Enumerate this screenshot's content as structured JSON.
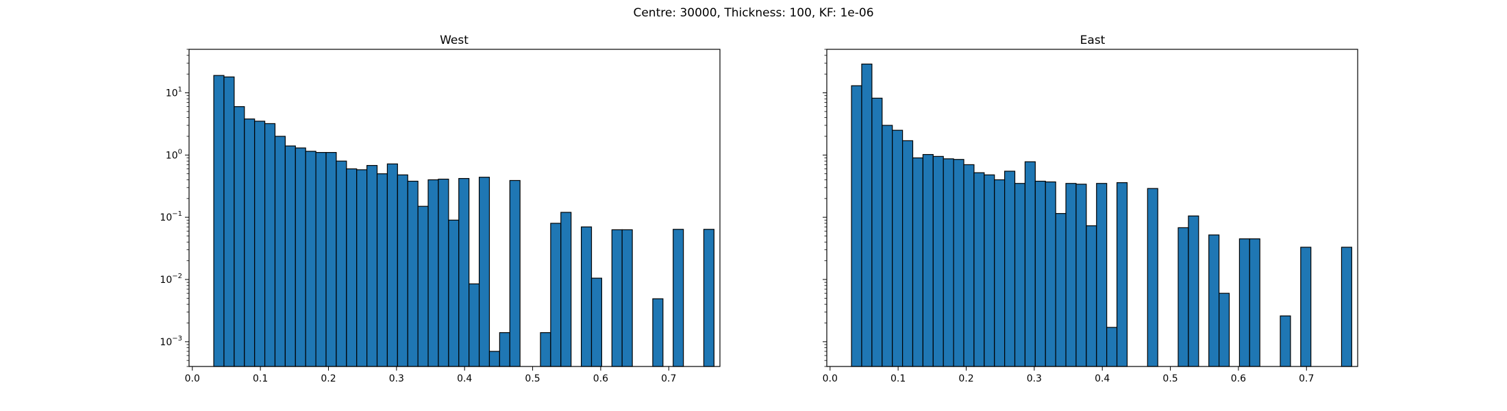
{
  "figure": {
    "suptitle": "Centre: 30000, Thickness: 100, KF: 1e-06"
  },
  "chart_data": [
    {
      "type": "bar",
      "title": "West",
      "xlabel": "",
      "ylabel": "",
      "yscale": "log",
      "grid": false,
      "xlim": [
        -0.0048,
        0.7752
      ],
      "ylim": [
        0.0004,
        50
      ],
      "bin_width": 0.015,
      "bar_color": "#1f77b4",
      "edge_color": "#000000",
      "x_ticks": [
        {
          "value": 0.0,
          "label": "0.0"
        },
        {
          "value": 0.1,
          "label": "0.1"
        },
        {
          "value": 0.2,
          "label": "0.2"
        },
        {
          "value": 0.3,
          "label": "0.3"
        },
        {
          "value": 0.4,
          "label": "0.4"
        },
        {
          "value": 0.5,
          "label": "0.5"
        },
        {
          "value": 0.6,
          "label": "0.6"
        },
        {
          "value": 0.7,
          "label": "0.7"
        }
      ],
      "y_ticks": [
        {
          "value": 0.001,
          "base": "10",
          "exp": "−3"
        },
        {
          "value": 0.01,
          "base": "10",
          "exp": "−2"
        },
        {
          "value": 0.1,
          "base": "10",
          "exp": "−1"
        },
        {
          "value": 1,
          "base": "10",
          "exp": "0"
        },
        {
          "value": 10,
          "base": "10",
          "exp": "1"
        }
      ],
      "bins": [
        {
          "x0": 0.0315,
          "x1": 0.0465,
          "value": 19.0
        },
        {
          "x0": 0.0465,
          "x1": 0.0615,
          "value": 18.0
        },
        {
          "x0": 0.0615,
          "x1": 0.0765,
          "value": 6.0
        },
        {
          "x0": 0.0765,
          "x1": 0.0915,
          "value": 3.8
        },
        {
          "x0": 0.0915,
          "x1": 0.1065,
          "value": 3.5
        },
        {
          "x0": 0.1065,
          "x1": 0.1215,
          "value": 3.2
        },
        {
          "x0": 0.1215,
          "x1": 0.1365,
          "value": 2.0
        },
        {
          "x0": 0.1365,
          "x1": 0.1515,
          "value": 1.4
        },
        {
          "x0": 0.1515,
          "x1": 0.1665,
          "value": 1.3
        },
        {
          "x0": 0.1665,
          "x1": 0.1815,
          "value": 1.15
        },
        {
          "x0": 0.1815,
          "x1": 0.1965,
          "value": 1.1
        },
        {
          "x0": 0.1965,
          "x1": 0.2115,
          "value": 1.1
        },
        {
          "x0": 0.2115,
          "x1": 0.2265,
          "value": 0.8
        },
        {
          "x0": 0.2265,
          "x1": 0.2415,
          "value": 0.6
        },
        {
          "x0": 0.2415,
          "x1": 0.2565,
          "value": 0.58
        },
        {
          "x0": 0.2565,
          "x1": 0.2715,
          "value": 0.68
        },
        {
          "x0": 0.2715,
          "x1": 0.2865,
          "value": 0.5
        },
        {
          "x0": 0.2865,
          "x1": 0.3015,
          "value": 0.72
        },
        {
          "x0": 0.3015,
          "x1": 0.3165,
          "value": 0.48
        },
        {
          "x0": 0.3165,
          "x1": 0.3315,
          "value": 0.38
        },
        {
          "x0": 0.3315,
          "x1": 0.3465,
          "value": 0.15
        },
        {
          "x0": 0.3465,
          "x1": 0.3615,
          "value": 0.4
        },
        {
          "x0": 0.3615,
          "x1": 0.3765,
          "value": 0.41
        },
        {
          "x0": 0.3765,
          "x1": 0.3915,
          "value": 0.09
        },
        {
          "x0": 0.3915,
          "x1": 0.4065,
          "value": 0.42
        },
        {
          "x0": 0.4065,
          "x1": 0.4215,
          "value": 0.0085
        },
        {
          "x0": 0.4215,
          "x1": 0.4365,
          "value": 0.44
        },
        {
          "x0": 0.4365,
          "x1": 0.4515,
          "value": 0.0007
        },
        {
          "x0": 0.4515,
          "x1": 0.4665,
          "value": 0.0014
        },
        {
          "x0": 0.4665,
          "x1": 0.4815,
          "value": 0.39
        },
        {
          "x0": 0.5115,
          "x1": 0.5265,
          "value": 0.0014
        },
        {
          "x0": 0.5265,
          "x1": 0.5415,
          "value": 0.08
        },
        {
          "x0": 0.5415,
          "x1": 0.5565,
          "value": 0.12
        },
        {
          "x0": 0.5715,
          "x1": 0.5865,
          "value": 0.07
        },
        {
          "x0": 0.5865,
          "x1": 0.6015,
          "value": 0.0105
        },
        {
          "x0": 0.6165,
          "x1": 0.6315,
          "value": 0.063
        },
        {
          "x0": 0.6315,
          "x1": 0.6465,
          "value": 0.063
        },
        {
          "x0": 0.6765,
          "x1": 0.6915,
          "value": 0.0049
        },
        {
          "x0": 0.7065,
          "x1": 0.7215,
          "value": 0.064
        },
        {
          "x0": 0.7515,
          "x1": 0.7665,
          "value": 0.064
        }
      ]
    },
    {
      "type": "bar",
      "title": "East",
      "xlabel": "",
      "ylabel": "",
      "yscale": "log",
      "grid": false,
      "xlim": [
        -0.0048,
        0.7752
      ],
      "ylim": [
        0.0004,
        50
      ],
      "bin_width": 0.015,
      "bar_color": "#1f77b4",
      "edge_color": "#000000",
      "x_ticks": [
        {
          "value": 0.0,
          "label": "0.0"
        },
        {
          "value": 0.1,
          "label": "0.1"
        },
        {
          "value": 0.2,
          "label": "0.2"
        },
        {
          "value": 0.3,
          "label": "0.3"
        },
        {
          "value": 0.4,
          "label": "0.4"
        },
        {
          "value": 0.5,
          "label": "0.5"
        },
        {
          "value": 0.6,
          "label": "0.6"
        },
        {
          "value": 0.7,
          "label": "0.7"
        }
      ],
      "y_ticks": [
        {
          "value": 0.001,
          "base": "",
          "exp": ""
        },
        {
          "value": 0.01,
          "base": "",
          "exp": ""
        },
        {
          "value": 0.1,
          "base": "",
          "exp": ""
        },
        {
          "value": 1,
          "base": "",
          "exp": ""
        },
        {
          "value": 10,
          "base": "",
          "exp": ""
        }
      ],
      "bins": [
        {
          "x0": 0.0315,
          "x1": 0.0465,
          "value": 13.0
        },
        {
          "x0": 0.0465,
          "x1": 0.0615,
          "value": 29.0
        },
        {
          "x0": 0.0615,
          "x1": 0.0765,
          "value": 8.2
        },
        {
          "x0": 0.0765,
          "x1": 0.0915,
          "value": 3.0
        },
        {
          "x0": 0.0915,
          "x1": 0.1065,
          "value": 2.5
        },
        {
          "x0": 0.1065,
          "x1": 0.1215,
          "value": 1.7
        },
        {
          "x0": 0.1215,
          "x1": 0.1365,
          "value": 0.9
        },
        {
          "x0": 0.1365,
          "x1": 0.1515,
          "value": 1.02
        },
        {
          "x0": 0.1515,
          "x1": 0.1665,
          "value": 0.95
        },
        {
          "x0": 0.1665,
          "x1": 0.1815,
          "value": 0.87
        },
        {
          "x0": 0.1815,
          "x1": 0.1965,
          "value": 0.85
        },
        {
          "x0": 0.1965,
          "x1": 0.2115,
          "value": 0.7
        },
        {
          "x0": 0.2115,
          "x1": 0.2265,
          "value": 0.52
        },
        {
          "x0": 0.2265,
          "x1": 0.2415,
          "value": 0.48
        },
        {
          "x0": 0.2415,
          "x1": 0.2565,
          "value": 0.4
        },
        {
          "x0": 0.2565,
          "x1": 0.2715,
          "value": 0.55
        },
        {
          "x0": 0.2715,
          "x1": 0.2865,
          "value": 0.35
        },
        {
          "x0": 0.2865,
          "x1": 0.3015,
          "value": 0.78
        },
        {
          "x0": 0.3015,
          "x1": 0.3165,
          "value": 0.38
        },
        {
          "x0": 0.3165,
          "x1": 0.3315,
          "value": 0.37
        },
        {
          "x0": 0.3315,
          "x1": 0.3465,
          "value": 0.115
        },
        {
          "x0": 0.3465,
          "x1": 0.3615,
          "value": 0.35
        },
        {
          "x0": 0.3615,
          "x1": 0.3765,
          "value": 0.34
        },
        {
          "x0": 0.3765,
          "x1": 0.3915,
          "value": 0.073
        },
        {
          "x0": 0.3915,
          "x1": 0.4065,
          "value": 0.35
        },
        {
          "x0": 0.4065,
          "x1": 0.4215,
          "value": 0.0017
        },
        {
          "x0": 0.4215,
          "x1": 0.4365,
          "value": 0.36
        },
        {
          "x0": 0.4665,
          "x1": 0.4815,
          "value": 0.29
        },
        {
          "x0": 0.5115,
          "x1": 0.5265,
          "value": 0.068
        },
        {
          "x0": 0.5265,
          "x1": 0.5415,
          "value": 0.105
        },
        {
          "x0": 0.5565,
          "x1": 0.5715,
          "value": 0.052
        },
        {
          "x0": 0.5715,
          "x1": 0.5865,
          "value": 0.006
        },
        {
          "x0": 0.6015,
          "x1": 0.6165,
          "value": 0.045
        },
        {
          "x0": 0.6165,
          "x1": 0.6315,
          "value": 0.045
        },
        {
          "x0": 0.6615,
          "x1": 0.6765,
          "value": 0.0026
        },
        {
          "x0": 0.6915,
          "x1": 0.7065,
          "value": 0.033
        },
        {
          "x0": 0.7515,
          "x1": 0.7665,
          "value": 0.033
        }
      ]
    }
  ]
}
